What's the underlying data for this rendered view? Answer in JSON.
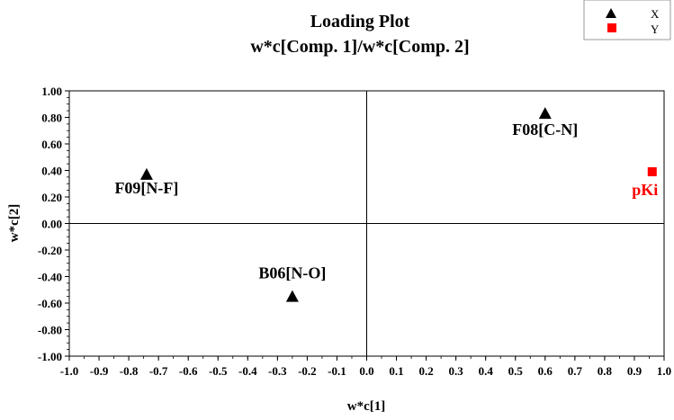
{
  "chart_data": {
    "type": "scatter",
    "title": "Loading Plot",
    "subtitle": "w*c[Comp. 1]/w*c[Comp. 2]",
    "xlabel": "w*c[1]",
    "ylabel": "w*c[2]",
    "xlim": [
      -1.0,
      1.0
    ],
    "ylim": [
      -1.0,
      1.0
    ],
    "xticks": [
      "-1.0",
      "-0.9",
      "-0.8",
      "-0.7",
      "-0.6",
      "-0.5",
      "-0.4",
      "-0.3",
      "-0.2",
      "-0.1",
      "0.0",
      "0.1",
      "0.2",
      "0.3",
      "0.4",
      "0.5",
      "0.6",
      "0.7",
      "0.8",
      "0.9",
      "1.0"
    ],
    "yticks": [
      "-1.00",
      "-0.80",
      "-0.60",
      "-0.40",
      "-0.20",
      "0.00",
      "0.20",
      "0.40",
      "0.60",
      "0.80",
      "1.00"
    ],
    "grid": false,
    "legend_position": "top-right",
    "series": [
      {
        "name": "X",
        "marker": "triangle",
        "color": "#000000",
        "points": [
          {
            "label": "F09[N-F]",
            "x": -0.74,
            "y": 0.37
          },
          {
            "label": "F08[C-N]",
            "x": 0.6,
            "y": 0.83
          },
          {
            "label": "B06[N-O]",
            "x": -0.25,
            "y": -0.55
          }
        ]
      },
      {
        "name": "Y",
        "marker": "square",
        "color": "#ff0000",
        "points": [
          {
            "label": "pKi",
            "x": 0.96,
            "y": 0.39
          }
        ]
      }
    ]
  }
}
